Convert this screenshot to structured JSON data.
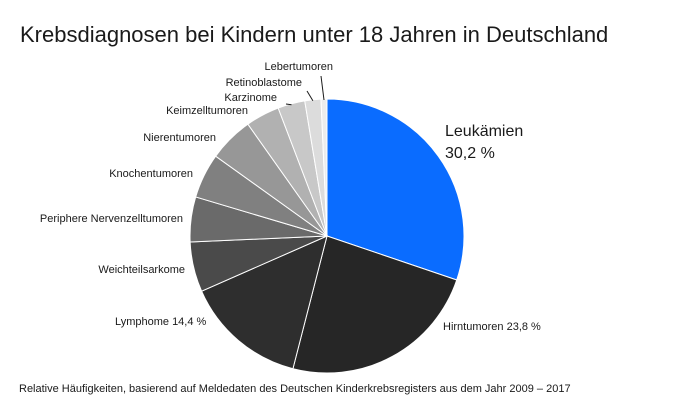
{
  "chart_data": {
    "type": "pie",
    "title": "Krebsdiagnosen bei Kindern unter 18 Jahren in Deutschland",
    "footnote": "Relative Häufigkeiten, basierend auf Meldedaten des Deutschen Kinderkrebsregisters aus dem Jahr 2009 – 2017",
    "start": "12 o'clock, clockwise",
    "slices": [
      {
        "label": "Leukämien",
        "value_label": "30,2 %",
        "value": 30.2,
        "color": "#0a6cff"
      },
      {
        "label": "Hirntumoren",
        "value_label": "23,8 %",
        "value": 23.8,
        "color": "#262626"
      },
      {
        "label": "Lymphome",
        "value_label": "14,4 %",
        "value": 14.4,
        "color": "#2e2e2e"
      },
      {
        "label": "Weichteilsarkome",
        "value_label": "",
        "value": 5.9,
        "color": "#4a4a4a"
      },
      {
        "label": "Periphere Nervenzelltumoren",
        "value_label": "",
        "value": 5.3,
        "color": "#6a6a6a"
      },
      {
        "label": "Knochentumoren",
        "value_label": "",
        "value": 5.3,
        "color": "#808080"
      },
      {
        "label": "Nierentumoren",
        "value_label": "",
        "value": 5.3,
        "color": "#979797"
      },
      {
        "label": "Keimzelltumoren",
        "value_label": "",
        "value": 4.0,
        "color": "#b1b1b1"
      },
      {
        "label": "Karzinome",
        "value_label": "",
        "value": 3.2,
        "color": "#c8c8c8"
      },
      {
        "label": "Retinoblastome",
        "value_label": "",
        "value": 1.9,
        "color": "#dcdcdc"
      },
      {
        "label": "Lebertumoren",
        "value_label": "",
        "value": 0.7,
        "color": "#ececec"
      }
    ]
  }
}
